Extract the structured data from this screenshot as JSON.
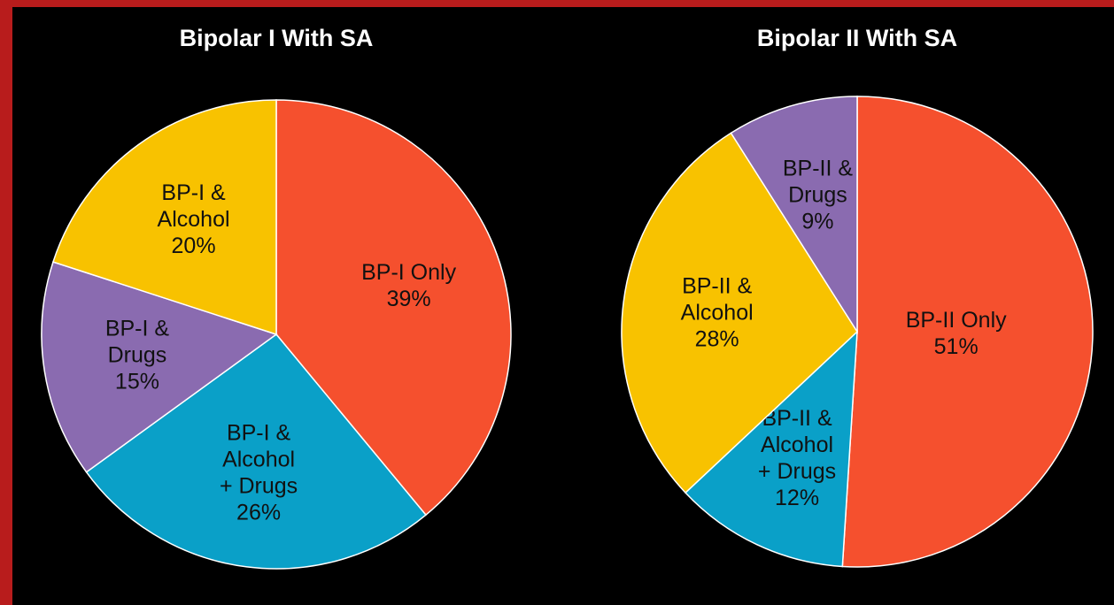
{
  "chart_data": [
    {
      "type": "pie",
      "title": "Bipolar I With SA",
      "categories": [
        [
          "BP-I Only"
        ],
        [
          "BP-I &",
          "Alcohol",
          "+ Drugs"
        ],
        [
          "BP-I &",
          "Drugs"
        ],
        [
          "BP-I &",
          "Alcohol"
        ]
      ],
      "values": [
        39,
        26,
        15,
        20
      ],
      "value_labels": [
        "39%",
        "26%",
        "15%",
        "20%"
      ],
      "colors": [
        "#f5502e",
        "#0aa0c8",
        "#8a6bb0",
        "#f8c200"
      ]
    },
    {
      "type": "pie",
      "title": "Bipolar II With SA",
      "categories": [
        [
          "BP-II Only"
        ],
        [
          "BP-II &",
          "Alcohol",
          "+ Drugs"
        ],
        [
          "BP-II &",
          "Alcohol"
        ],
        [
          "BP-II &",
          "Drugs"
        ]
      ],
      "values": [
        51,
        12,
        28,
        9
      ],
      "value_labels": [
        "51%",
        "12%",
        "28%",
        "9%"
      ],
      "colors": [
        "#f5502e",
        "#0aa0c8",
        "#f8c200",
        "#8a6bb0"
      ]
    }
  ]
}
